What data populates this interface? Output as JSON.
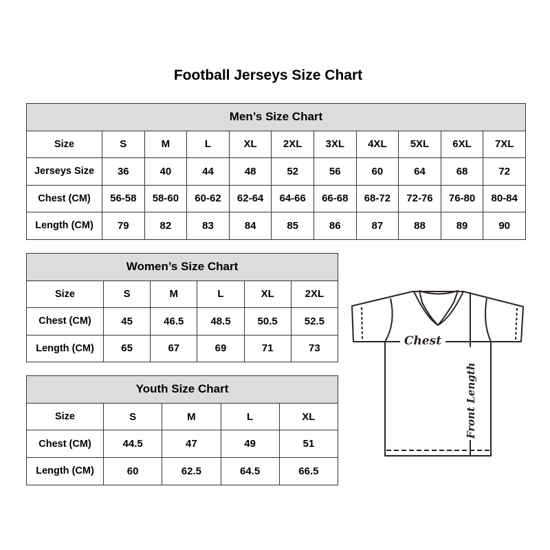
{
  "title": "Football Jerseys Size Chart",
  "men": {
    "heading": "Men’s Size Chart",
    "rows": [
      {
        "label": "Size",
        "values": [
          "S",
          "M",
          "L",
          "XL",
          "2XL",
          "3XL",
          "4XL",
          "5XL",
          "6XL",
          "7XL"
        ]
      },
      {
        "label": "Jerseys Size",
        "values": [
          "36",
          "40",
          "44",
          "48",
          "52",
          "56",
          "60",
          "64",
          "68",
          "72"
        ]
      },
      {
        "label": "Chest (CM)",
        "values": [
          "56-58",
          "58-60",
          "60-62",
          "62-64",
          "64-66",
          "66-68",
          "68-72",
          "72-76",
          "76-80",
          "80-84"
        ]
      },
      {
        "label": "Length (CM)",
        "values": [
          "79",
          "82",
          "83",
          "84",
          "85",
          "86",
          "87",
          "88",
          "89",
          "90"
        ]
      }
    ]
  },
  "women": {
    "heading": "Women’s Size Chart",
    "rows": [
      {
        "label": "Size",
        "values": [
          "S",
          "M",
          "L",
          "XL",
          "2XL"
        ]
      },
      {
        "label": "Chest (CM)",
        "values": [
          "45",
          "46.5",
          "48.5",
          "50.5",
          "52.5"
        ]
      },
      {
        "label": "Length (CM)",
        "values": [
          "65",
          "67",
          "69",
          "71",
          "73"
        ]
      }
    ]
  },
  "youth": {
    "heading": "Youth Size Chart",
    "rows": [
      {
        "label": "Size",
        "values": [
          "S",
          "M",
          "L",
          "XL"
        ]
      },
      {
        "label": "Chest (CM)",
        "values": [
          "44.5",
          "47",
          "49",
          "51"
        ]
      },
      {
        "label": "Length (CM)",
        "values": [
          "60",
          "62.5",
          "64.5",
          "66.5"
        ]
      }
    ]
  },
  "diagram": {
    "chest_label": "Chest",
    "length_label": "Front Length"
  },
  "colors": {
    "header_bg": "#dcdcdc",
    "outline": "#2a2220"
  }
}
